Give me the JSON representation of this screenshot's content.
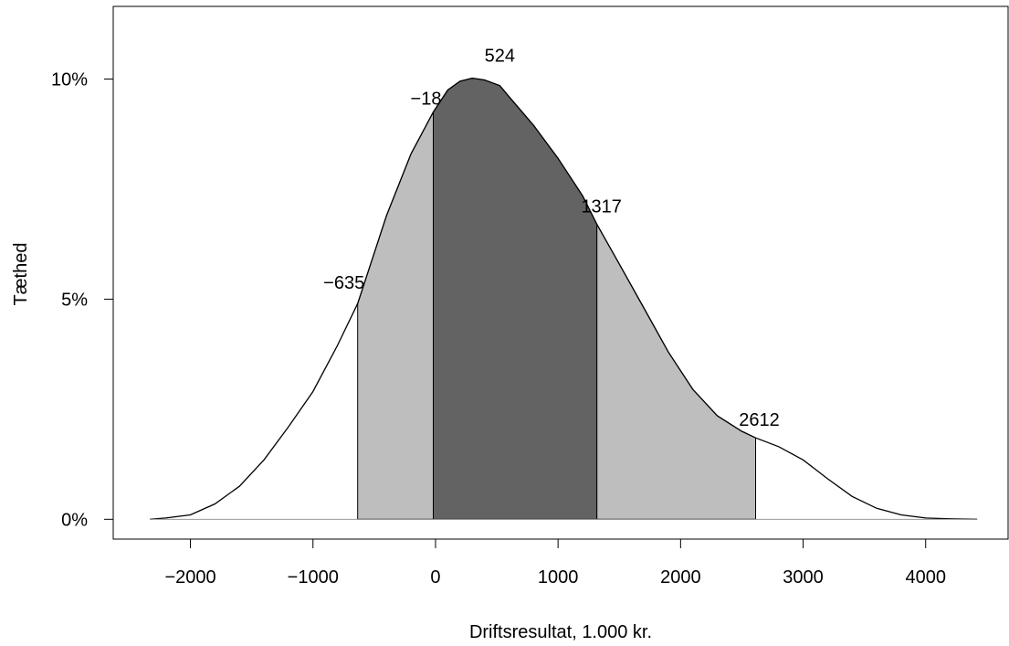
{
  "chart_data": {
    "type": "area",
    "title": "",
    "xlabel": "Driftsresultat, 1.000 kr.",
    "ylabel": "Tæthed",
    "xlim": [
      -2630,
      4680
    ],
    "ylim": [
      -0.0045,
      0.1165
    ],
    "x_ticks": [
      -2000,
      -1000,
      0,
      1000,
      2000,
      3000,
      4000
    ],
    "x_tick_labels": [
      "−2000",
      "−1000",
      "0",
      "1000",
      "2000",
      "3000",
      "4000"
    ],
    "y_ticks": [
      0,
      0.05,
      0.1
    ],
    "y_tick_labels": [
      "0%",
      "5%",
      "10%"
    ],
    "grid": false,
    "series": [
      {
        "x": [
          -2330,
          -2200,
          -2000,
          -1800,
          -1600,
          -1400,
          -1200,
          -1000,
          -800,
          -635,
          -400,
          -200,
          -18,
          100,
          200,
          300,
          400,
          524,
          600,
          800,
          1000,
          1200,
          1317,
          1500,
          1700,
          1900,
          2100,
          2300,
          2500,
          2612,
          2800,
          3000,
          3200,
          3400,
          3600,
          3800,
          4000,
          4200,
          4420
        ],
        "y": [
          0.0,
          0.0003,
          0.001,
          0.0035,
          0.0075,
          0.0135,
          0.021,
          0.029,
          0.0395,
          0.049,
          0.069,
          0.083,
          0.0925,
          0.0975,
          0.0995,
          0.1002,
          0.0998,
          0.0985,
          0.096,
          0.0895,
          0.082,
          0.0735,
          0.067,
          0.058,
          0.048,
          0.038,
          0.0295,
          0.0235,
          0.02,
          0.0185,
          0.0165,
          0.0135,
          0.0092,
          0.0052,
          0.0025,
          0.001,
          0.0003,
          0.0001,
          0.0
        ]
      }
    ],
    "shaded_bands": [
      {
        "from": -635,
        "to": -18,
        "color": "#bebebe"
      },
      {
        "from": -18,
        "to": 1317,
        "color": "#636363"
      },
      {
        "from": 1317,
        "to": 2612,
        "color": "#bebebe"
      }
    ],
    "annotations": [
      {
        "x": -635,
        "label": "−635"
      },
      {
        "x": -18,
        "label": "−18"
      },
      {
        "x": 524,
        "label": "524"
      },
      {
        "x": 1317,
        "label": "1317"
      },
      {
        "x": 2612,
        "label": "2612"
      }
    ]
  }
}
